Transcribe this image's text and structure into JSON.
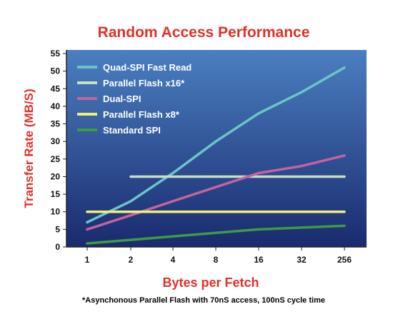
{
  "chart_data": {
    "type": "line",
    "title": "Random Access Performance",
    "xlabel": "Bytes per Fetch",
    "ylabel": "Transfer Rate (MB/S)",
    "footnote": "*Asynchonous Parallel Flash with 70nS access, 100nS cycle time",
    "categories": [
      "1",
      "2",
      "4",
      "8",
      "16",
      "32",
      "256"
    ],
    "y_ticks": [
      "0",
      "5",
      "10",
      "15",
      "20",
      "25",
      "30",
      "35",
      "40",
      "45",
      "50",
      "55"
    ],
    "ylim": [
      0,
      55
    ],
    "grid": false,
    "legend_position": "top-left",
    "series": [
      {
        "name": "Quad-SPI Fast Read",
        "color": "#6cc4c8",
        "values": [
          7,
          13,
          21,
          30,
          38,
          44,
          51
        ]
      },
      {
        "name": "Parallel Flash x16*",
        "color": "#c7dfc0",
        "values": [
          null,
          20,
          20,
          20,
          20,
          20,
          20
        ]
      },
      {
        "name": "Dual-SPI",
        "color": "#c2649e",
        "values": [
          5,
          9,
          13,
          17,
          21,
          23,
          26
        ]
      },
      {
        "name": "Parallel Flash x8*",
        "color": "#f3ee7a",
        "values": [
          10,
          10,
          10,
          10,
          10,
          10,
          10
        ]
      },
      {
        "name": "Standard SPI",
        "color": "#3f9a43",
        "values": [
          1,
          2,
          3,
          4,
          5,
          5.5,
          6
        ]
      }
    ],
    "colors": {
      "title": "#e0312a",
      "axis_label": "#e0312a",
      "plot_top": "#4a7fc0",
      "plot_bottom": "#1a2a6e"
    }
  }
}
